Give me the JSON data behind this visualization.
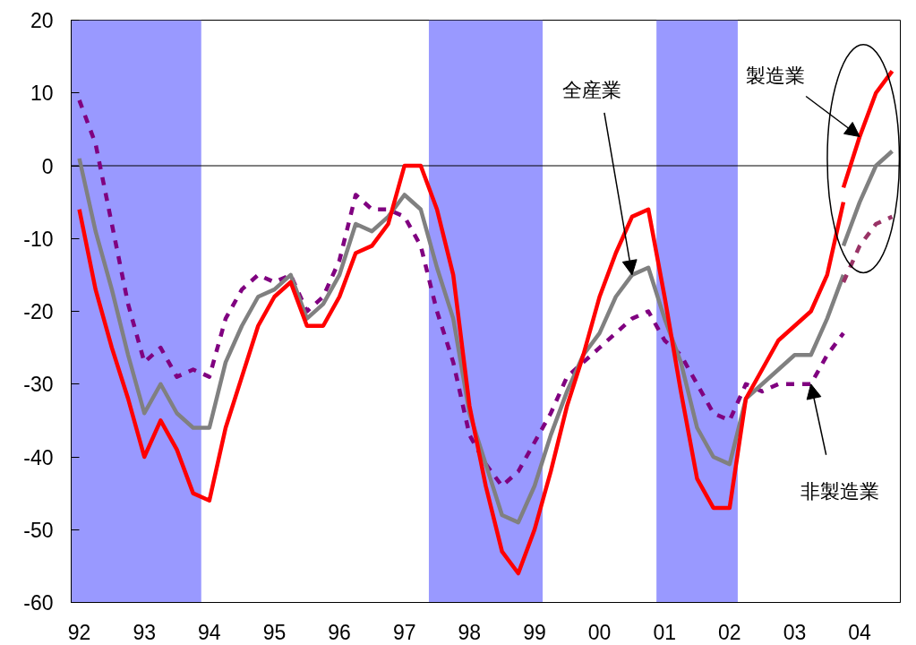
{
  "chart_data": {
    "type": "line",
    "x": [
      1992,
      1992.25,
      1992.5,
      1992.75,
      1993,
      1993.25,
      1993.5,
      1993.75,
      1994,
      1994.25,
      1994.5,
      1994.75,
      1995,
      1995.25,
      1995.5,
      1995.75,
      1996,
      1996.25,
      1996.5,
      1996.75,
      1997,
      1997.25,
      1997.5,
      1997.75,
      1998,
      1998.25,
      1998.5,
      1998.75,
      1999,
      1999.25,
      1999.5,
      1999.75,
      2000,
      2000.25,
      2000.5,
      2000.75,
      2001,
      2001.25,
      2001.5,
      2001.75,
      2002,
      2002.25,
      2002.5,
      2002.75,
      2003,
      2003.25,
      2003.5,
      2003.75
    ],
    "series": [
      {
        "color": "#800080",
        "line_style": "dashed",
        "values": [
          9,
          3,
          -8,
          -19,
          -27,
          -25,
          -29,
          -28,
          -29,
          -21,
          -17,
          -15,
          -16,
          -15,
          -20,
          -18,
          -13,
          -4,
          -6,
          -6,
          -7,
          -11,
          -20,
          -27,
          -37,
          -41,
          -44,
          -42,
          -38,
          -34,
          -29,
          -27,
          -25,
          -23,
          -21,
          -20,
          -24,
          -26,
          -30,
          -34,
          -35,
          -30,
          -31,
          -30,
          -30,
          -30,
          -26,
          -23
        ]
      },
      {
        "color": "#808080",
        "line_style": "solid",
        "values": [
          1,
          -9,
          -17,
          -26,
          -34,
          -30,
          -34,
          -36,
          -36,
          -27,
          -22,
          -18,
          -17,
          -15,
          -21,
          -19,
          -15,
          -8,
          -9,
          -7,
          -4,
          -6,
          -14,
          -21,
          -34,
          -41,
          -48,
          -49,
          -44,
          -37,
          -31,
          -26,
          -23,
          -18,
          -15,
          -14,
          -21,
          -27,
          -36,
          -40,
          -41,
          -32,
          -30,
          -28,
          -26,
          -26,
          -21,
          -15
        ]
      },
      {
        "color": "#ff0000",
        "line_style": "solid",
        "values": [
          -6,
          -17,
          -25,
          -32,
          -40,
          -35,
          -39,
          -45,
          -46,
          -36,
          -29,
          -22,
          -18,
          -16,
          -22,
          -22,
          -18,
          -12,
          -11,
          -8,
          0,
          0,
          -6,
          -15,
          -33,
          -44,
          -53,
          -56,
          -50,
          -42,
          -33,
          -26,
          -18,
          -12,
          -7,
          -6,
          -18,
          -31,
          -43,
          -47,
          -47,
          -32,
          -28,
          -24,
          -22,
          -20,
          -15,
          -5
        ]
      },
      {
        "color": "#993366",
        "line_style": "dashed",
        "x": [
          2003.75,
          2004,
          2004.25,
          2004.5
        ],
        "values": [
          -16,
          -11,
          -8,
          -7
        ]
      },
      {
        "color": "#808080",
        "line_style": "solid",
        "x": [
          2003.75,
          2004,
          2004.25,
          2004.5
        ],
        "values": [
          -11,
          -5,
          0,
          2
        ]
      },
      {
        "color": "#ff0000",
        "line_style": "solid",
        "x": [
          2003.75,
          2004,
          2004.25,
          2004.5
        ],
        "values": [
          -3,
          4,
          10,
          13
        ]
      }
    ],
    "annotations": [
      {
        "text": "全産業",
        "x": 2000.5,
        "y": -15
      },
      {
        "text": "製造業",
        "x": 2004,
        "y": 4
      },
      {
        "text": "非製造業",
        "x": 2003.25,
        "y": -30
      }
    ],
    "xlim": [
      1991.875,
      2004.625
    ],
    "xticks": [
      {
        "value": 1992,
        "label": "92"
      },
      {
        "value": 1993,
        "label": "93"
      },
      {
        "value": 1994,
        "label": "94"
      },
      {
        "value": 1995,
        "label": "95"
      },
      {
        "value": 1996,
        "label": "96"
      },
      {
        "value": 1997,
        "label": "97"
      },
      {
        "value": 1998,
        "label": "98"
      },
      {
        "value": 1999,
        "label": "99"
      },
      {
        "value": 2000,
        "label": "00"
      },
      {
        "value": 2001,
        "label": "01"
      },
      {
        "value": 2002,
        "label": "02"
      },
      {
        "value": 2003,
        "label": "03"
      },
      {
        "value": 2004,
        "label": "04"
      }
    ],
    "ylim": [
      -60,
      20
    ],
    "yticks": [
      -60,
      -50,
      -40,
      -30,
      -20,
      -10,
      0,
      10,
      20
    ],
    "bands": [
      {
        "axis": "x",
        "from": 1991.875,
        "to": 1993.875,
        "color": "#9999ff"
      },
      {
        "axis": "x",
        "from": 1997.375,
        "to": 1999.125,
        "color": "#9999ff"
      },
      {
        "axis": "x",
        "from": 2000.875,
        "to": 2002.125,
        "color": "#9999ff"
      }
    ],
    "ref_lines": [
      {
        "axis": "y",
        "value": 0,
        "color": "#000000"
      }
    ]
  }
}
